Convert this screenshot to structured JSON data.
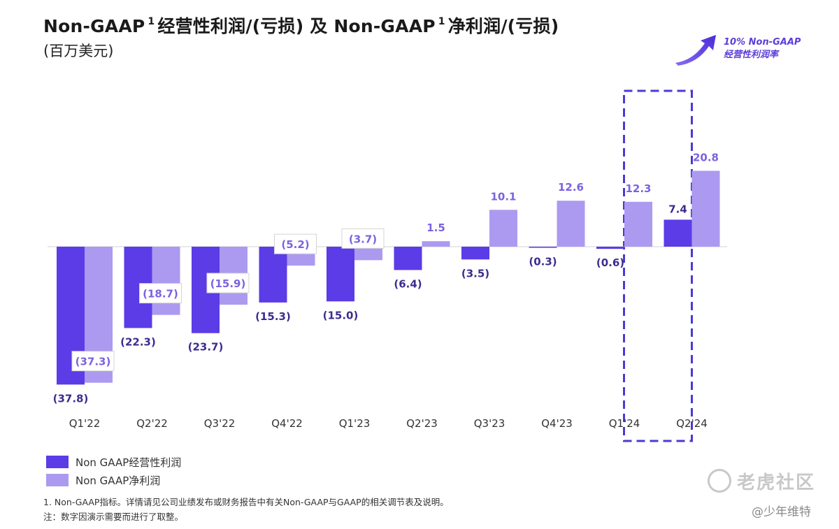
{
  "title": {
    "part1": "Non-GAAP",
    "sup1": "1",
    "part2": "经营性利润/(亏损) 及 Non-GAAP",
    "sup2": "1",
    "part3": "净利润/(亏损)"
  },
  "subtitle": "(百万美元)",
  "callout": {
    "line1": "10% Non-GAAP",
    "line2": "经营性利润率"
  },
  "colors": {
    "operating": "#5b3ce6",
    "net": "#ac9af0",
    "operating_label": "#3b2d8f",
    "net_label": "#7c62e0",
    "highlight_border": "#4a3ad4"
  },
  "chart_data": {
    "type": "bar",
    "categories": [
      "Q1'22",
      "Q2'22",
      "Q3'22",
      "Q4'22",
      "Q1'23",
      "Q2'23",
      "Q3'23",
      "Q4'23",
      "Q1'24",
      "Q2'24"
    ],
    "series": [
      {
        "name": "Non GAAP经营性利润",
        "values": [
          -37.8,
          -22.3,
          -23.7,
          -15.3,
          -15.0,
          -6.4,
          -3.5,
          -0.3,
          -0.6,
          7.4
        ],
        "labels": [
          "(37.8)",
          "(22.3)",
          "(23.7)",
          "(15.3)",
          "(15.0)",
          "(6.4)",
          "(3.5)",
          "(0.3)",
          "(0.6)",
          "7.4"
        ]
      },
      {
        "name": "Non GAAP净利润",
        "values": [
          -37.3,
          -18.7,
          -15.9,
          -5.2,
          -3.7,
          1.5,
          10.1,
          12.6,
          12.3,
          20.8
        ],
        "labels": [
          "(37.3)",
          "(18.7)",
          "(15.9)",
          "(5.2)",
          "(3.7)",
          "1.5",
          "10.1",
          "12.6",
          "12.3",
          "20.8"
        ]
      }
    ],
    "highlighted_category": "Q2'24",
    "units": "百万美元"
  },
  "legend": [
    {
      "label": "Non GAAP经营性利润"
    },
    {
      "label": "Non GAAP净利润"
    }
  ],
  "footnotes": {
    "note1": "1. Non-GAAP指标。详情请见公司业绩发布或财务报告中有关Non-GAAP与GAAP的相关调节表及说明。",
    "note2": "注：数字因演示需要而进行了取整。"
  },
  "watermark": {
    "site": "老虎社区",
    "user": "@少年维特"
  }
}
